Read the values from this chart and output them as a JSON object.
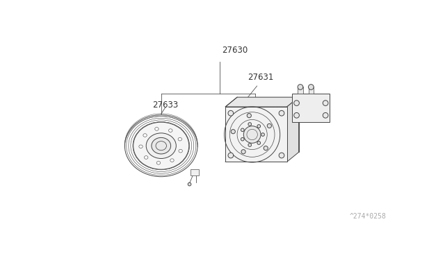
{
  "bg_color": "#ffffff",
  "lc": "#444444",
  "lc_light": "#888888",
  "lw": 0.7,
  "label_color": "#333333",
  "label_27630": "27630",
  "label_27631": "27631",
  "label_27633": "27633",
  "watermark": "^274*0258",
  "label_font_size": 8.5,
  "watermark_font_size": 7
}
